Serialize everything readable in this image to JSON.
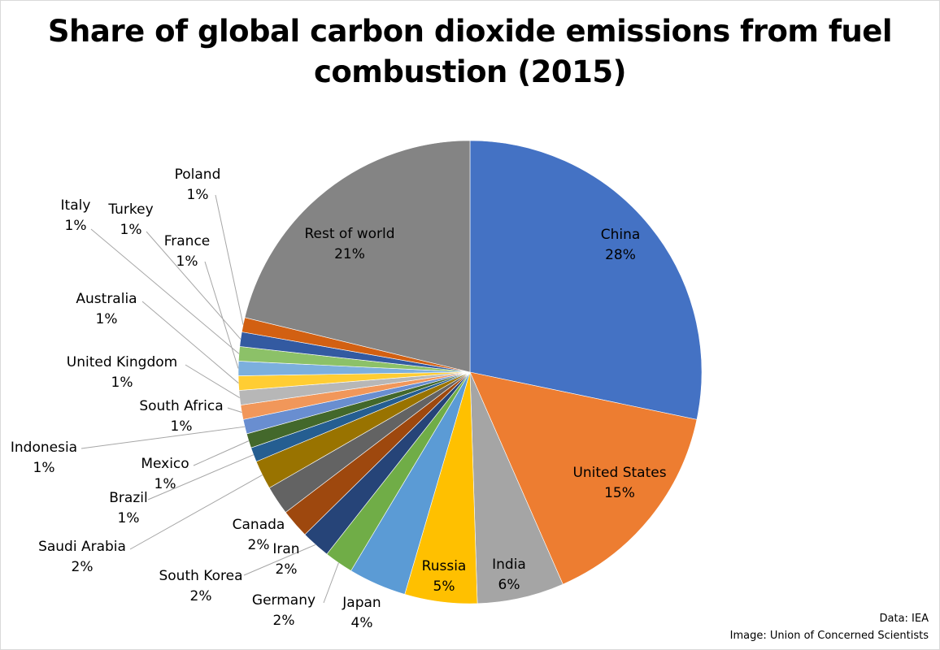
{
  "chart_data": {
    "type": "pie",
    "title": "Share of global carbon dioxide emissions from fuel combustion (2015)",
    "start_angle": "top, clockwise",
    "slices": [
      {
        "label": "China",
        "value": 28,
        "display": "28%",
        "color": "#4472C4"
      },
      {
        "label": "United States",
        "value": 15,
        "display": "15%",
        "color": "#ED7D31"
      },
      {
        "label": "India",
        "value": 6,
        "display": "6%",
        "color": "#A5A5A5"
      },
      {
        "label": "Russia",
        "value": 5,
        "display": "5%",
        "color": "#FFC000"
      },
      {
        "label": "Japan",
        "value": 4,
        "display": "4%",
        "color": "#5B9BD5"
      },
      {
        "label": "Germany",
        "value": 2,
        "display": "2%",
        "color": "#70AD47"
      },
      {
        "label": "South Korea",
        "value": 2,
        "display": "2%",
        "color": "#264478"
      },
      {
        "label": "Iran",
        "value": 2,
        "display": "2%",
        "color": "#9E480E"
      },
      {
        "label": "Canada",
        "value": 2,
        "display": "2%",
        "color": "#636363"
      },
      {
        "label": "Saudi Arabia",
        "value": 2,
        "display": "2%",
        "color": "#997300"
      },
      {
        "label": "Brazil",
        "value": 1,
        "display": "1%",
        "color": "#255E91"
      },
      {
        "label": "Mexico",
        "value": 1,
        "display": "1%",
        "color": "#43682B"
      },
      {
        "label": "Indonesia",
        "value": 1,
        "display": "1%",
        "color": "#698ED0"
      },
      {
        "label": "South Africa",
        "value": 1,
        "display": "1%",
        "color": "#F1975A"
      },
      {
        "label": "United Kingdom",
        "value": 1,
        "display": "1%",
        "color": "#B7B7B7"
      },
      {
        "label": "Australia",
        "value": 1,
        "display": "1%",
        "color": "#FFCD33"
      },
      {
        "label": "France",
        "value": 1,
        "display": "1%",
        "color": "#7CAFDD"
      },
      {
        "label": "Italy",
        "value": 1,
        "display": "1%",
        "color": "#8CC168"
      },
      {
        "label": "Turkey",
        "value": 1,
        "display": "1%",
        "color": "#335AA1"
      },
      {
        "label": "Poland",
        "value": 1,
        "display": "1%",
        "color": "#D26012"
      },
      {
        "label": "Rest of world",
        "value": 21,
        "display": "21%",
        "color": "#848484"
      }
    ]
  },
  "credits": {
    "data": "Data: IEA",
    "image": "Image: Union of Concerned Scientists"
  }
}
